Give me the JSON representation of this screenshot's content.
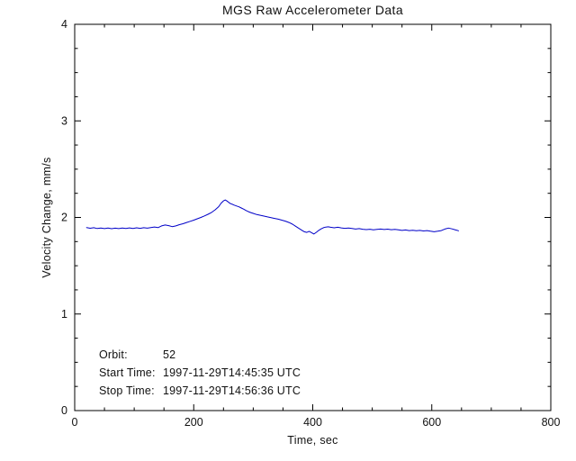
{
  "chart_data": {
    "type": "line",
    "title": "MGS Raw Accelerometer Data",
    "xlabel": "Time, sec",
    "ylabel": "Velocity Change, mm/s",
    "xlim": [
      0,
      800
    ],
    "ylim": [
      0,
      4
    ],
    "xticks": [
      0,
      200,
      400,
      600,
      800
    ],
    "yticks": [
      0,
      1,
      2,
      3,
      4
    ],
    "x_minor_step": 50,
    "y_minor_step": 0.25,
    "grid": false,
    "legend": "none",
    "line_color": "#0000c8",
    "axis_color": "#000000",
    "background_color": "#ffffff",
    "series": [
      {
        "name": "velocity-change",
        "points": [
          [
            20,
            1.895
          ],
          [
            26,
            1.888
          ],
          [
            32,
            1.894
          ],
          [
            38,
            1.885
          ],
          [
            44,
            1.891
          ],
          [
            50,
            1.884
          ],
          [
            56,
            1.89
          ],
          [
            62,
            1.883
          ],
          [
            68,
            1.889
          ],
          [
            74,
            1.884
          ],
          [
            80,
            1.89
          ],
          [
            86,
            1.885
          ],
          [
            92,
            1.892
          ],
          [
            98,
            1.886
          ],
          [
            104,
            1.893
          ],
          [
            110,
            1.887
          ],
          [
            116,
            1.894
          ],
          [
            122,
            1.889
          ],
          [
            128,
            1.896
          ],
          [
            134,
            1.901
          ],
          [
            140,
            1.895
          ],
          [
            146,
            1.912
          ],
          [
            152,
            1.922
          ],
          [
            158,
            1.915
          ],
          [
            164,
            1.905
          ],
          [
            170,
            1.912
          ],
          [
            176,
            1.925
          ],
          [
            182,
            1.935
          ],
          [
            188,
            1.948
          ],
          [
            194,
            1.96
          ],
          [
            200,
            1.972
          ],
          [
            206,
            1.986
          ],
          [
            212,
            2.0
          ],
          [
            218,
            2.016
          ],
          [
            224,
            2.033
          ],
          [
            230,
            2.052
          ],
          [
            236,
            2.079
          ],
          [
            242,
            2.112
          ],
          [
            246,
            2.148
          ],
          [
            250,
            2.172
          ],
          [
            253,
            2.181
          ],
          [
            256,
            2.17
          ],
          [
            259,
            2.155
          ],
          [
            262,
            2.143
          ],
          [
            265,
            2.136
          ],
          [
            268,
            2.128
          ],
          [
            272,
            2.118
          ],
          [
            276,
            2.11
          ],
          [
            280,
            2.098
          ],
          [
            284,
            2.086
          ],
          [
            288,
            2.072
          ],
          [
            292,
            2.06
          ],
          [
            296,
            2.05
          ],
          [
            300,
            2.042
          ],
          [
            306,
            2.03
          ],
          [
            312,
            2.022
          ],
          [
            318,
            2.014
          ],
          [
            324,
            2.006
          ],
          [
            330,
            1.998
          ],
          [
            336,
            1.99
          ],
          [
            342,
            1.982
          ],
          [
            348,
            1.972
          ],
          [
            354,
            1.962
          ],
          [
            360,
            1.948
          ],
          [
            366,
            1.93
          ],
          [
            371,
            1.91
          ],
          [
            376,
            1.89
          ],
          [
            381,
            1.87
          ],
          [
            386,
            1.852
          ],
          [
            390,
            1.845
          ],
          [
            394,
            1.856
          ],
          [
            398,
            1.842
          ],
          [
            402,
            1.828
          ],
          [
            406,
            1.846
          ],
          [
            410,
            1.866
          ],
          [
            414,
            1.882
          ],
          [
            418,
            1.894
          ],
          [
            422,
            1.9
          ],
          [
            426,
            1.903
          ],
          [
            430,
            1.898
          ],
          [
            436,
            1.893
          ],
          [
            442,
            1.898
          ],
          [
            448,
            1.892
          ],
          [
            454,
            1.887
          ],
          [
            460,
            1.891
          ],
          [
            466,
            1.885
          ],
          [
            472,
            1.88
          ],
          [
            478,
            1.884
          ],
          [
            484,
            1.878
          ],
          [
            490,
            1.874
          ],
          [
            496,
            1.878
          ],
          [
            502,
            1.872
          ],
          [
            508,
            1.876
          ],
          [
            514,
            1.88
          ],
          [
            520,
            1.875
          ],
          [
            526,
            1.879
          ],
          [
            532,
            1.873
          ],
          [
            538,
            1.877
          ],
          [
            544,
            1.871
          ],
          [
            550,
            1.866
          ],
          [
            556,
            1.87
          ],
          [
            562,
            1.864
          ],
          [
            568,
            1.868
          ],
          [
            574,
            1.862
          ],
          [
            580,
            1.866
          ],
          [
            586,
            1.86
          ],
          [
            592,
            1.864
          ],
          [
            598,
            1.857
          ],
          [
            604,
            1.852
          ],
          [
            610,
            1.857
          ],
          [
            616,
            1.864
          ],
          [
            622,
            1.88
          ],
          [
            628,
            1.89
          ],
          [
            634,
            1.882
          ],
          [
            640,
            1.87
          ],
          [
            645,
            1.862
          ]
        ]
      }
    ],
    "annotations": {
      "orbit_label": "Orbit:",
      "orbit_value": "52",
      "start_label": "Start Time:",
      "start_value": "1997-11-29T14:45:35 UTC",
      "stop_label": "Stop Time:",
      "stop_value": "1997-11-29T14:56:36 UTC"
    }
  }
}
